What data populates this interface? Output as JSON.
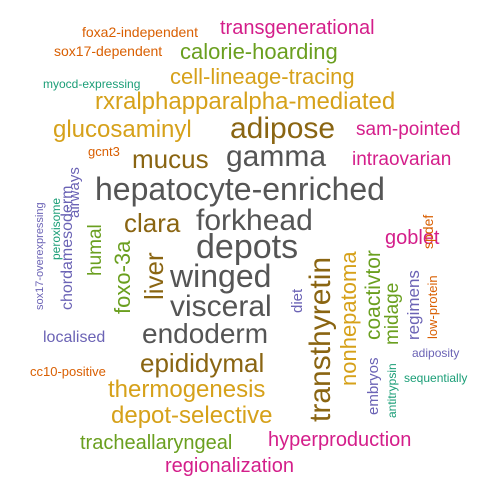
{
  "colors": {
    "orange": "#d95f02",
    "green": "#1b9e77",
    "magenta": "#d41e8a",
    "olive": "#6a9f1f",
    "gold": "#d6a11a",
    "brown": "#8a6512",
    "gray": "#555555",
    "purple": "#6b63b5"
  },
  "words": [
    {
      "key": "foxa2-independent",
      "text": "foxa2-independent",
      "color": "orange"
    },
    {
      "key": "transgenerational",
      "text": "transgenerational",
      "color": "magenta"
    },
    {
      "key": "sox17-dependent",
      "text": "sox17-dependent",
      "color": "orange"
    },
    {
      "key": "calorie-hoarding",
      "text": "calorie-hoarding",
      "color": "olive"
    },
    {
      "key": "myocd-expressing",
      "text": "myocd-expressing",
      "color": "green"
    },
    {
      "key": "cell-lineage-tracing",
      "text": "cell-lineage-tracing",
      "color": "gold"
    },
    {
      "key": "rxralphapparalpha-mediated",
      "text": "rxralphapparalpha-mediated",
      "color": "gold"
    },
    {
      "key": "glucosaminyl",
      "text": "glucosaminyl",
      "color": "gold"
    },
    {
      "key": "adipose",
      "text": "adipose",
      "color": "brown"
    },
    {
      "key": "sam-pointed",
      "text": "sam-pointed",
      "color": "magenta"
    },
    {
      "key": "gcnt3",
      "text": "gcnt3",
      "color": "orange"
    },
    {
      "key": "mucus",
      "text": "mucus",
      "color": "brown"
    },
    {
      "key": "gamma",
      "text": "gamma",
      "color": "gray"
    },
    {
      "key": "intraovarian",
      "text": "intraovarian",
      "color": "magenta"
    },
    {
      "key": "hepatocyte-enriched",
      "text": "hepatocyte-enriched",
      "color": "gray"
    },
    {
      "key": "forkhead",
      "text": "forkhead",
      "color": "gray"
    },
    {
      "key": "clara",
      "text": "clara",
      "color": "brown"
    },
    {
      "key": "depots",
      "text": "depots",
      "color": "gray"
    },
    {
      "key": "goblet",
      "text": "goblet",
      "color": "magenta"
    },
    {
      "key": "winged",
      "text": "winged",
      "color": "gray"
    },
    {
      "key": "visceral",
      "text": "visceral",
      "color": "gray"
    },
    {
      "key": "localised",
      "text": "localised",
      "color": "purple"
    },
    {
      "key": "endoderm",
      "text": "endoderm",
      "color": "gray"
    },
    {
      "key": "adiposity",
      "text": "adiposity",
      "color": "purple"
    },
    {
      "key": "epididymal",
      "text": "epididymal",
      "color": "brown"
    },
    {
      "key": "cc10-positive",
      "text": "cc10-positive",
      "color": "orange"
    },
    {
      "key": "sequentially",
      "text": "sequentially",
      "color": "green"
    },
    {
      "key": "thermogenesis",
      "text": "thermogenesis",
      "color": "gold"
    },
    {
      "key": "depot-selective",
      "text": "depot-selective",
      "color": "gold"
    },
    {
      "key": "trachealaryngeal",
      "text": "tracheallaryngeal",
      "color": "olive"
    },
    {
      "key": "hyperproduction",
      "text": "hyperproduction",
      "color": "magenta"
    },
    {
      "key": "regionalization",
      "text": "regionalization",
      "color": "magenta"
    },
    {
      "key": "sox17-overexpressing",
      "text": "sox17-overexpressing",
      "color": "purple"
    },
    {
      "key": "peroxisome",
      "text": "peroxisome",
      "color": "green"
    },
    {
      "key": "chordamesoderm",
      "text": "chordamesoderm",
      "color": "purple"
    },
    {
      "key": "airways",
      "text": "airways",
      "color": "purple"
    },
    {
      "key": "humal",
      "text": "humal",
      "color": "olive"
    },
    {
      "key": "foxo-3a",
      "text": "foxo-3a",
      "color": "olive"
    },
    {
      "key": "liver",
      "text": "liver",
      "color": "brown"
    },
    {
      "key": "transthyretin",
      "text": "transthyretin",
      "color": "brown"
    },
    {
      "key": "nonhepatoma",
      "text": "nonhepatoma",
      "color": "gold"
    },
    {
      "key": "coactivtor",
      "text": "coactivtor",
      "color": "olive"
    },
    {
      "key": "midage",
      "text": "midage",
      "color": "olive"
    },
    {
      "key": "regimens",
      "text": "regimens",
      "color": "purple"
    },
    {
      "key": "low-protein",
      "text": "low-protein",
      "color": "orange"
    },
    {
      "key": "spdef",
      "text": "spdef",
      "color": "orange"
    },
    {
      "key": "diet",
      "text": "diet",
      "color": "purple"
    },
    {
      "key": "embryos",
      "text": "embryos",
      "color": "purple"
    },
    {
      "key": "antitrypsin",
      "text": "antitrypsin",
      "color": "green"
    }
  ]
}
